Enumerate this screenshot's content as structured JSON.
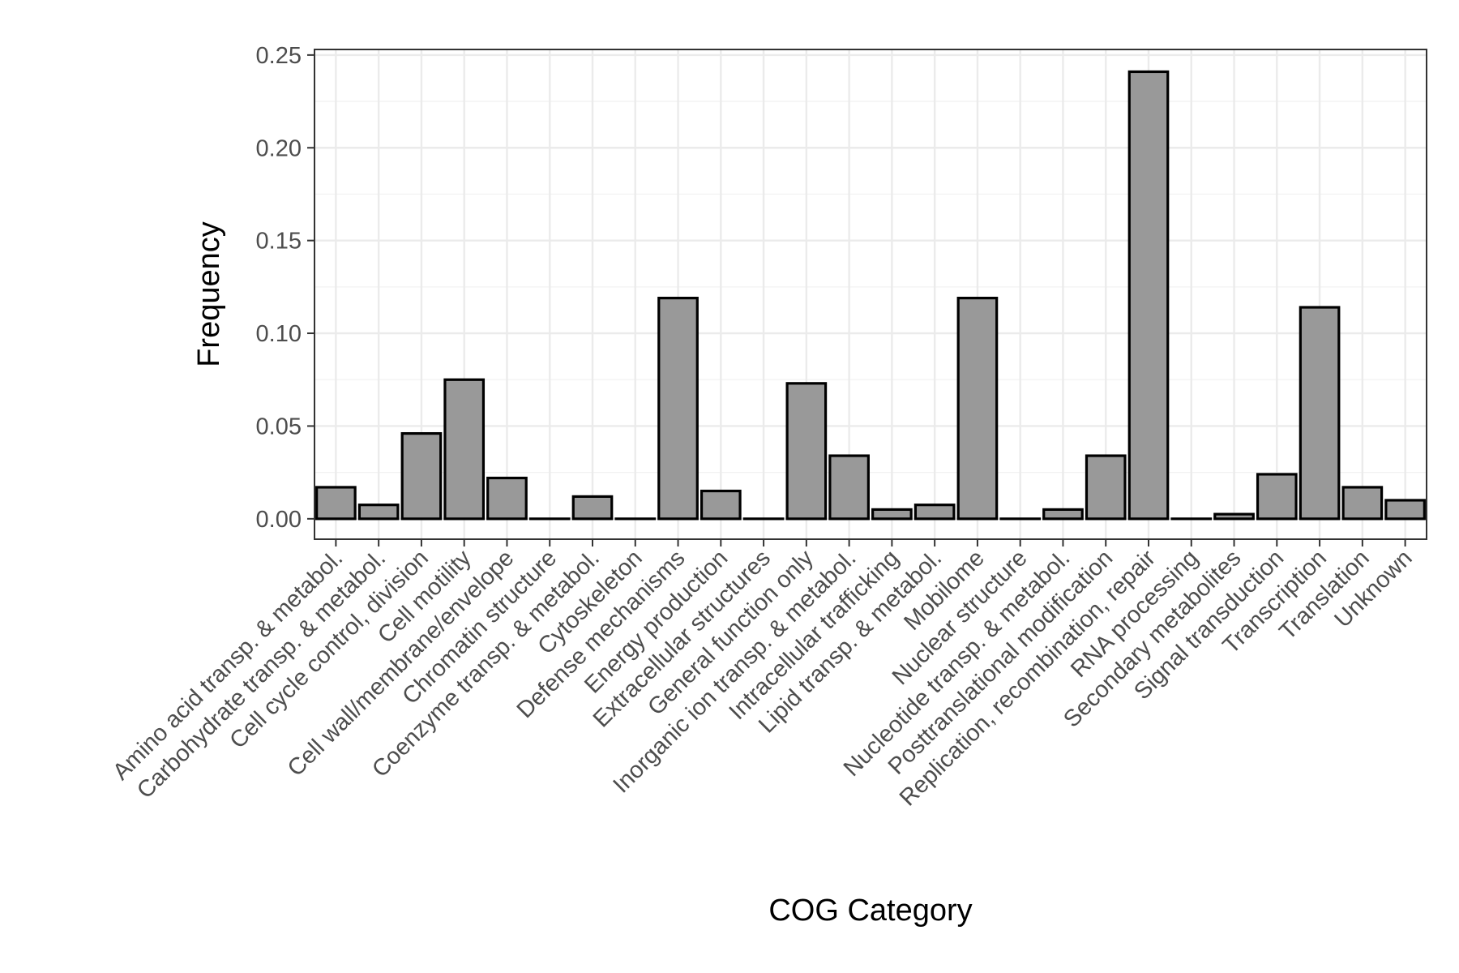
{
  "chart_data": {
    "type": "bar",
    "title": "",
    "xlabel": "COG Category",
    "ylabel": "Frequency",
    "ylim": [
      -0.011,
      0.253
    ],
    "yticks": [
      0.0,
      0.05,
      0.1,
      0.15,
      0.2,
      0.25
    ],
    "ytick_labels": [
      "0.00",
      "0.05",
      "0.10",
      "0.15",
      "0.20",
      "0.25"
    ],
    "grid": true,
    "legend": "none",
    "bar_fill": "#999999",
    "bar_stroke": "#000000",
    "categories": [
      "Amino acid transp. & metabol.",
      "Carbohydrate transp. & metabol.",
      "Cell cycle control, division",
      "Cell motility",
      "Cell wall/membrane/envelope",
      "Chromatin structure",
      "Coenzyme transp. & metabol.",
      "Cytoskeleton",
      "Defense mechanisms",
      "Energy production",
      "Extracellular structures",
      "General function only",
      "Inorganic ion transp. & metabol.",
      "Intracellular trafficking",
      "Lipid transp. & metabol.",
      "Mobilome",
      "Nuclear structure",
      "Nucleotide transp. & metabol.",
      "Posttranslational modification",
      "Replication, recombination, repair",
      "RNA processing",
      "Secondary metabolites",
      "Signal transduction",
      "Transcription",
      "Translation",
      "Unknown"
    ],
    "values": [
      0.017,
      0.0075,
      0.046,
      0.075,
      0.022,
      0.0,
      0.012,
      0.0,
      0.119,
      0.015,
      0.0,
      0.073,
      0.034,
      0.005,
      0.0075,
      0.119,
      0.0,
      0.005,
      0.034,
      0.241,
      0.0,
      0.0025,
      0.024,
      0.114,
      0.017,
      0.01
    ]
  }
}
